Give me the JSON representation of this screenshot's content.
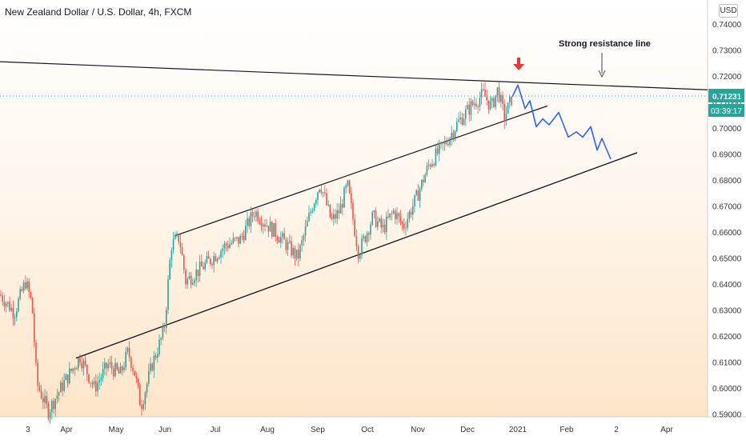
{
  "header": {
    "title": "New Zealand Dollar / U.S. Dollar, 4h, FXCM",
    "currency": "USD"
  },
  "chart_data": {
    "type": "candlestick",
    "title": "New Zealand Dollar / U.S. Dollar, 4h, FXCM",
    "y_axis_ticks": [
      "0.74000",
      "0.73000",
      "0.72000",
      "0.71000",
      "0.70000",
      "0.69000",
      "0.68000",
      "0.67000",
      "0.66000",
      "0.65000",
      "0.64000",
      "0.63000",
      "0.62000",
      "0.61000",
      "0.60000",
      "0.59000"
    ],
    "x_axis_ticks": [
      "3",
      "Apr",
      "May",
      "Jun",
      "Jul",
      "Aug",
      "Sep",
      "Oct",
      "Nov",
      "Dec",
      "2021",
      "Feb",
      "2",
      "Apr"
    ],
    "ylim": [
      0.588,
      0.742
    ],
    "last_price": "0.71231",
    "countdown": "03:39:17",
    "price_path": [
      [
        "Mar",
        0.636
      ],
      [
        "Mar",
        0.629
      ],
      [
        "Mar",
        0.641
      ],
      [
        "Mar",
        0.632
      ],
      [
        "Mar",
        0.602
      ],
      [
        "Mar",
        0.591
      ],
      [
        "Apr",
        0.601
      ],
      [
        "Apr",
        0.612
      ],
      [
        "Apr",
        0.6
      ],
      [
        "Apr",
        0.609
      ],
      [
        "May",
        0.605
      ],
      [
        "May",
        0.614
      ],
      [
        "May",
        0.606
      ],
      [
        "May",
        0.593
      ],
      [
        "May",
        0.609
      ],
      [
        "Jun",
        0.622
      ],
      [
        "Jun",
        0.655
      ],
      [
        "Jun",
        0.658
      ],
      [
        "Jun",
        0.641
      ],
      [
        "Jul",
        0.649
      ],
      [
        "Jul",
        0.655
      ],
      [
        "Jul",
        0.657
      ],
      [
        "Aug",
        0.668
      ],
      [
        "Aug",
        0.664
      ],
      [
        "Aug",
        0.658
      ],
      [
        "Aug",
        0.65
      ],
      [
        "Sep",
        0.67
      ],
      [
        "Sep",
        0.679
      ],
      [
        "Sep",
        0.664
      ],
      [
        "Sep",
        0.668
      ],
      [
        "Oct",
        0.678
      ],
      [
        "Oct",
        0.652
      ],
      [
        "Oct",
        0.666
      ],
      [
        "Oct",
        0.661
      ],
      [
        "Nov",
        0.668
      ],
      [
        "Nov",
        0.662
      ],
      [
        "Nov",
        0.673
      ],
      [
        "Nov",
        0.686
      ],
      [
        "Dec",
        0.694
      ],
      [
        "Dec",
        0.702
      ],
      [
        "Dec",
        0.709
      ],
      [
        "Dec",
        0.713
      ],
      [
        "Dec",
        0.708
      ],
      [
        "Dec",
        0.715
      ],
      [
        "Dec",
        0.704
      ],
      [
        "Dec",
        0.712
      ]
    ],
    "projection": [
      [
        "2021",
        0.7165
      ],
      [
        "Jan",
        0.7075
      ],
      [
        "Jan",
        0.7105
      ],
      [
        "Jan",
        0.7005
      ],
      [
        "Jan",
        0.7035
      ],
      [
        "Jan",
        0.7012
      ],
      [
        "Feb",
        0.706
      ],
      [
        "Feb",
        0.6965
      ],
      [
        "Feb",
        0.6985
      ],
      [
        "Feb",
        0.6965
      ],
      [
        "Feb",
        0.7005
      ],
      [
        "Feb",
        0.6915
      ],
      [
        "2",
        0.696
      ],
      [
        "2",
        0.688
      ]
    ],
    "lines": [
      {
        "name": "resistance",
        "start": [
          "Mar",
          0.7255
        ],
        "end": [
          "Apr",
          0.7147
        ]
      },
      {
        "name": "channel-upper",
        "start": [
          "Jun",
          0.6585
        ],
        "end": [
          "Jan",
          0.7085
        ]
      },
      {
        "name": "channel-lower-1",
        "start": [
          "Apr",
          0.6115
        ],
        "end": [
          "2",
          0.6885
        ]
      },
      {
        "name": "channel-lower-2",
        "start": [
          "Jun",
          0.625
        ],
        "end": [
          "2",
          0.691
        ]
      }
    ],
    "annotations": [
      {
        "label": "Strong resistance line"
      }
    ],
    "colors": {
      "bull": "#26a69a",
      "bear": "#ef5350",
      "projection": "#2962ff",
      "arrow": "#e53935",
      "price_label_bg": "#26a69a",
      "trendline": "#131722"
    }
  }
}
